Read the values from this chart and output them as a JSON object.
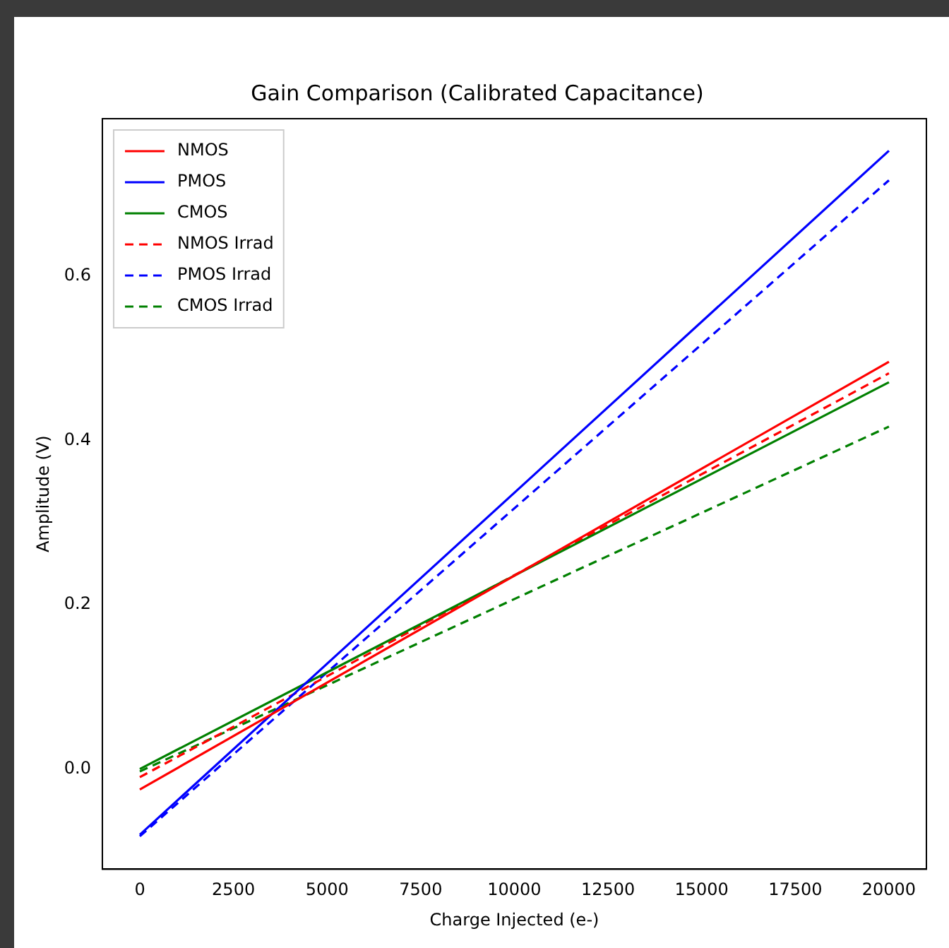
{
  "chart_data": {
    "type": "line",
    "title": "Gain Comparison (Calibrated Capacitance)",
    "xlabel": "Charge Injected (e-)",
    "ylabel": "Amplitude (V)",
    "x": [
      0,
      20000
    ],
    "series": [
      {
        "name": "NMOS",
        "color": "#ff0000",
        "values": [
          -0.025,
          0.496
        ],
        "line_style": "solid"
      },
      {
        "name": "PMOS",
        "color": "#0000ff",
        "values": [
          -0.08,
          0.753
        ],
        "line_style": "solid"
      },
      {
        "name": "CMOS",
        "color": "#008000",
        "values": [
          0.0,
          0.471
        ],
        "line_style": "solid"
      },
      {
        "name": "NMOS Irrad",
        "color": "#ff0000",
        "values": [
          -0.01,
          0.482
        ],
        "line_style": "dashed"
      },
      {
        "name": "PMOS Irrad",
        "color": "#0000ff",
        "values": [
          -0.082,
          0.717
        ],
        "line_style": "dashed"
      },
      {
        "name": "CMOS Irrad",
        "color": "#008000",
        "values": [
          -0.003,
          0.417
        ],
        "line_style": "dashed"
      }
    ],
    "xlim": [
      -1000,
      21000
    ],
    "xticks": [
      0,
      2500,
      5000,
      7500,
      10000,
      12500,
      15000,
      17500,
      20000
    ],
    "ylim": [
      -0.122,
      0.792
    ],
    "yticks": [
      {
        "value": 0,
        "label": "0.0"
      },
      0.2,
      0.4,
      0.6
    ],
    "grid": false,
    "legend": "top left",
    "marker": "none"
  }
}
